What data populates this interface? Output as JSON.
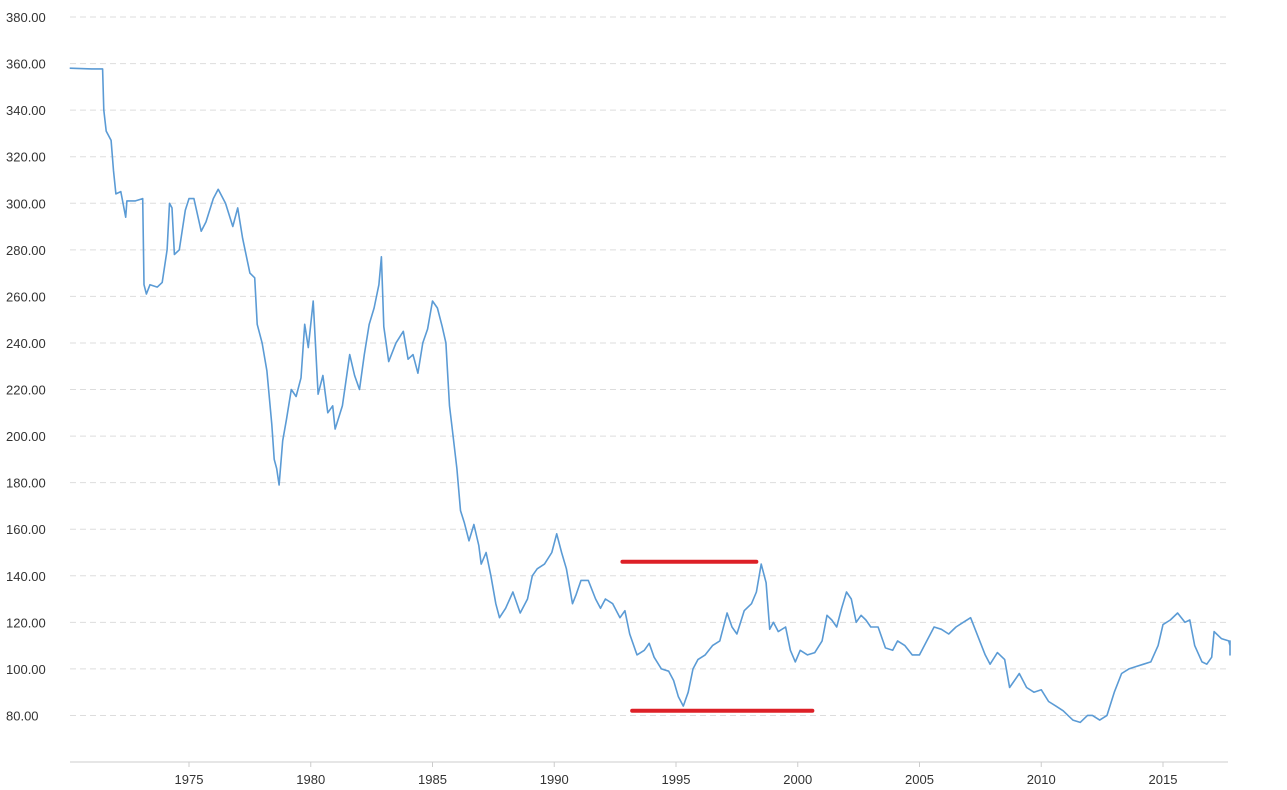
{
  "chart_data": {
    "type": "line",
    "title": "",
    "xlabel": "",
    "ylabel": "",
    "ylim": [
      60,
      380
    ],
    "xlim": [
      1970.1,
      2018.0
    ],
    "grid": true,
    "y_ticks": [
      "380.00",
      "360.00",
      "340.00",
      "320.00",
      "300.00",
      "280.00",
      "260.00",
      "240.00",
      "220.00",
      "200.00",
      "180.00",
      "160.00",
      "140.00",
      "120.00",
      "100.00",
      "80.00"
    ],
    "x_ticks": [
      "1975",
      "1980",
      "1985",
      "1990",
      "1995",
      "2000",
      "2005",
      "2010",
      "2015"
    ],
    "colors": {
      "line": "#5b9bd5",
      "annotation": "#dd2027",
      "grid": "#dddddd"
    },
    "series": [
      {
        "values": [
          [
            1970.1,
            358
          ],
          [
            1971.0,
            357.7
          ],
          [
            1971.45,
            357.7
          ],
          [
            1971.5,
            340
          ],
          [
            1971.6,
            331
          ],
          [
            1971.8,
            327
          ],
          [
            1971.9,
            314
          ],
          [
            1972.0,
            304
          ],
          [
            1972.2,
            305
          ],
          [
            1972.4,
            294
          ],
          [
            1972.45,
            301
          ],
          [
            1972.8,
            301
          ],
          [
            1973.1,
            302
          ],
          [
            1973.15,
            265
          ],
          [
            1973.25,
            261
          ],
          [
            1973.4,
            265
          ],
          [
            1973.7,
            264
          ],
          [
            1973.9,
            266
          ],
          [
            1974.1,
            280
          ],
          [
            1974.2,
            300
          ],
          [
            1974.3,
            298
          ],
          [
            1974.4,
            278
          ],
          [
            1974.6,
            280
          ],
          [
            1974.85,
            297
          ],
          [
            1975.0,
            302
          ],
          [
            1975.2,
            302
          ],
          [
            1975.5,
            288
          ],
          [
            1975.7,
            292
          ],
          [
            1976.0,
            302
          ],
          [
            1976.2,
            306
          ],
          [
            1976.5,
            300
          ],
          [
            1976.8,
            290
          ],
          [
            1977.0,
            298
          ],
          [
            1977.2,
            285
          ],
          [
            1977.5,
            270
          ],
          [
            1977.7,
            268
          ],
          [
            1977.8,
            248
          ],
          [
            1978.0,
            240
          ],
          [
            1978.2,
            228
          ],
          [
            1978.4,
            205
          ],
          [
            1978.5,
            190
          ],
          [
            1978.6,
            186
          ],
          [
            1978.7,
            179
          ],
          [
            1978.85,
            198
          ],
          [
            1979.0,
            207
          ],
          [
            1979.2,
            220
          ],
          [
            1979.4,
            217
          ],
          [
            1979.6,
            225
          ],
          [
            1979.75,
            248
          ],
          [
            1979.9,
            238
          ],
          [
            1980.1,
            258
          ],
          [
            1980.3,
            218
          ],
          [
            1980.5,
            226
          ],
          [
            1980.7,
            210
          ],
          [
            1980.9,
            213
          ],
          [
            1981.0,
            203
          ],
          [
            1981.3,
            213
          ],
          [
            1981.6,
            235
          ],
          [
            1981.8,
            226
          ],
          [
            1982.0,
            220
          ],
          [
            1982.2,
            235
          ],
          [
            1982.4,
            248
          ],
          [
            1982.6,
            255
          ],
          [
            1982.8,
            265
          ],
          [
            1982.9,
            277
          ],
          [
            1983.0,
            247
          ],
          [
            1983.2,
            232
          ],
          [
            1983.5,
            240
          ],
          [
            1983.8,
            245
          ],
          [
            1984.0,
            233
          ],
          [
            1984.2,
            235
          ],
          [
            1984.4,
            227
          ],
          [
            1984.6,
            240
          ],
          [
            1984.8,
            246
          ],
          [
            1985.0,
            258
          ],
          [
            1985.2,
            255
          ],
          [
            1985.4,
            247
          ],
          [
            1985.55,
            240
          ],
          [
            1985.7,
            213
          ],
          [
            1985.8,
            204
          ],
          [
            1986.0,
            186
          ],
          [
            1986.15,
            168
          ],
          [
            1986.3,
            163
          ],
          [
            1986.5,
            155
          ],
          [
            1986.7,
            162
          ],
          [
            1986.9,
            153
          ],
          [
            1987.0,
            145
          ],
          [
            1987.2,
            150
          ],
          [
            1987.4,
            140
          ],
          [
            1987.6,
            128
          ],
          [
            1987.75,
            122
          ],
          [
            1988.0,
            126
          ],
          [
            1988.3,
            133
          ],
          [
            1988.6,
            124
          ],
          [
            1988.9,
            130
          ],
          [
            1989.1,
            140
          ],
          [
            1989.3,
            143
          ],
          [
            1989.6,
            145
          ],
          [
            1989.9,
            150
          ],
          [
            1990.1,
            158
          ],
          [
            1990.3,
            150
          ],
          [
            1990.5,
            143
          ],
          [
            1990.75,
            128
          ],
          [
            1990.9,
            132
          ],
          [
            1991.1,
            138
          ],
          [
            1991.4,
            138
          ],
          [
            1991.7,
            130
          ],
          [
            1991.9,
            126
          ],
          [
            1992.1,
            130
          ],
          [
            1992.4,
            128
          ],
          [
            1992.7,
            122
          ],
          [
            1992.9,
            125
          ],
          [
            1993.1,
            115
          ],
          [
            1993.4,
            106
          ],
          [
            1993.7,
            108
          ],
          [
            1993.9,
            111
          ],
          [
            1994.1,
            105
          ],
          [
            1994.4,
            100
          ],
          [
            1994.7,
            99
          ],
          [
            1994.9,
            95
          ],
          [
            1995.1,
            88
          ],
          [
            1995.3,
            84
          ],
          [
            1995.5,
            90
          ],
          [
            1995.7,
            100
          ],
          [
            1995.9,
            104
          ],
          [
            1996.2,
            106
          ],
          [
            1996.5,
            110
          ],
          [
            1996.8,
            112
          ],
          [
            1997.1,
            124
          ],
          [
            1997.3,
            118
          ],
          [
            1997.5,
            115
          ],
          [
            1997.8,
            125
          ],
          [
            1998.1,
            128
          ],
          [
            1998.3,
            133
          ],
          [
            1998.5,
            145
          ],
          [
            1998.7,
            137
          ],
          [
            1998.85,
            117
          ],
          [
            1999.0,
            120
          ],
          [
            1999.2,
            116
          ],
          [
            1999.5,
            118
          ],
          [
            1999.7,
            108
          ],
          [
            1999.9,
            103
          ],
          [
            2000.1,
            108
          ],
          [
            2000.4,
            106
          ],
          [
            2000.7,
            107
          ],
          [
            2001.0,
            112
          ],
          [
            2001.2,
            123
          ],
          [
            2001.4,
            121
          ],
          [
            2001.6,
            118
          ],
          [
            2001.8,
            126
          ],
          [
            2002.0,
            133
          ],
          [
            2002.2,
            130
          ],
          [
            2002.4,
            120
          ],
          [
            2002.6,
            123
          ],
          [
            2002.8,
            121
          ],
          [
            2003.0,
            118
          ],
          [
            2003.3,
            118
          ],
          [
            2003.6,
            109
          ],
          [
            2003.9,
            108
          ],
          [
            2004.1,
            112
          ],
          [
            2004.4,
            110
          ],
          [
            2004.7,
            106
          ],
          [
            2005.0,
            106
          ],
          [
            2005.3,
            112
          ],
          [
            2005.6,
            118
          ],
          [
            2005.9,
            117
          ],
          [
            2006.2,
            115
          ],
          [
            2006.5,
            118
          ],
          [
            2006.8,
            120
          ],
          [
            2007.1,
            122
          ],
          [
            2007.4,
            114
          ],
          [
            2007.7,
            106
          ],
          [
            2007.9,
            102
          ],
          [
            2008.2,
            107
          ],
          [
            2008.5,
            104
          ],
          [
            2008.7,
            92
          ],
          [
            2008.9,
            95
          ],
          [
            2009.1,
            98
          ],
          [
            2009.4,
            92
          ],
          [
            2009.7,
            90
          ],
          [
            2010.0,
            91
          ],
          [
            2010.3,
            86
          ],
          [
            2010.6,
            84
          ],
          [
            2010.9,
            82
          ],
          [
            2011.1,
            80
          ],
          [
            2011.3,
            78
          ],
          [
            2011.6,
            77
          ],
          [
            2011.9,
            80
          ],
          [
            2012.1,
            80
          ],
          [
            2012.4,
            78
          ],
          [
            2012.7,
            80
          ],
          [
            2013.0,
            90
          ],
          [
            2013.3,
            98
          ],
          [
            2013.6,
            100
          ],
          [
            2013.9,
            101
          ],
          [
            2014.2,
            102
          ],
          [
            2014.5,
            103
          ],
          [
            2014.8,
            110
          ],
          [
            2015.0,
            119
          ],
          [
            2015.3,
            121
          ],
          [
            2015.6,
            124
          ],
          [
            2015.9,
            120
          ],
          [
            2016.1,
            121
          ],
          [
            2016.3,
            110
          ],
          [
            2016.6,
            103
          ],
          [
            2016.8,
            102
          ],
          [
            2017.0,
            105
          ],
          [
            2017.1,
            116
          ],
          [
            2017.4,
            113
          ],
          [
            2017.7,
            112
          ],
          [
            2018.0,
            110
          ],
          [
            2018.3,
            112
          ],
          [
            2018.6,
            106
          ],
          [
            2018.9,
            109
          ],
          [
            2019.1,
            111
          ],
          [
            2019.3,
            112
          ]
        ]
      }
    ],
    "annotations": [
      {
        "type": "hline",
        "y": 146,
        "x_start": 1992.8,
        "x_end": 1998.3
      },
      {
        "type": "hline",
        "y": 82,
        "x_start": 1993.2,
        "x_end": 2000.6
      }
    ]
  }
}
